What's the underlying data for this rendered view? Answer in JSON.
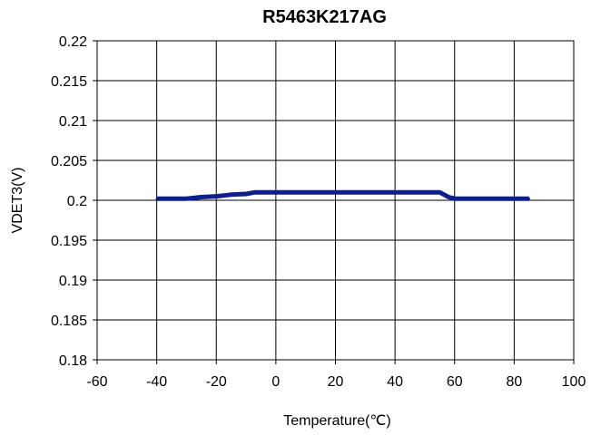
{
  "chart_data": {
    "type": "line",
    "title": "R5463K217AG",
    "xlabel": "Temperature(℃)",
    "ylabel": "VDET3(V)",
    "xlim": [
      -60,
      100
    ],
    "ylim": [
      0.18,
      0.22
    ],
    "x_ticks": [
      -60,
      -40,
      -20,
      0,
      20,
      40,
      60,
      80,
      100
    ],
    "x_tick_labels": [
      "-60",
      "-40",
      "-20",
      "0",
      "20",
      "40",
      "60",
      "80",
      "100"
    ],
    "y_ticks": [
      0.18,
      0.185,
      0.19,
      0.195,
      0.2,
      0.205,
      0.21,
      0.215,
      0.22
    ],
    "y_tick_labels": [
      "0.18",
      "0.185",
      "0.19",
      "0.195",
      "0.2",
      "0.205",
      "0.21",
      "0.215",
      "0.22"
    ],
    "grid": true,
    "series": [
      {
        "color": "#0d1f8c",
        "x": [
          -40,
          -30,
          -25,
          -20,
          -15,
          -10,
          -7,
          0,
          10,
          20,
          30,
          40,
          50,
          55,
          58,
          60,
          70,
          80,
          85
        ],
        "y": [
          0.2002,
          0.2002,
          0.2004,
          0.2005,
          0.2007,
          0.2008,
          0.201,
          0.201,
          0.201,
          0.201,
          0.201,
          0.201,
          0.201,
          0.201,
          0.2004,
          0.2002,
          0.2002,
          0.2002,
          0.2002
        ]
      }
    ]
  }
}
